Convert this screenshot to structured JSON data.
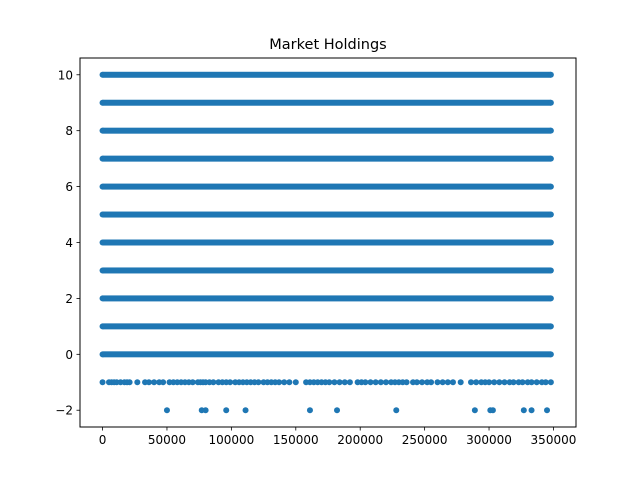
{
  "chart_data": {
    "type": "scatter",
    "title": "Market Holdings",
    "xlabel": "",
    "ylabel": "",
    "xlim": [
      -17500,
      367500
    ],
    "ylim": [
      -2.6,
      10.6
    ],
    "x_ticks": [
      0,
      50000,
      100000,
      150000,
      200000,
      250000,
      300000,
      350000
    ],
    "x_tick_labels": [
      "0",
      "50000",
      "100000",
      "150000",
      "200000",
      "250000",
      "300000",
      "350000"
    ],
    "y_ticks": [
      -2,
      0,
      2,
      4,
      6,
      8,
      10
    ],
    "y_tick_labels": [
      "−2",
      "0",
      "2",
      "4",
      "6",
      "8",
      "10"
    ],
    "grid": false,
    "marker_color": "#1f77b4",
    "dense_bands": [
      {
        "y": 10,
        "x_start": 0,
        "x_end": 348000
      },
      {
        "y": 9,
        "x_start": 0,
        "x_end": 348000
      },
      {
        "y": 8,
        "x_start": 0,
        "x_end": 348000
      },
      {
        "y": 7,
        "x_start": 0,
        "x_end": 348000
      },
      {
        "y": 6,
        "x_start": 0,
        "x_end": 348000
      },
      {
        "y": 5,
        "x_start": 0,
        "x_end": 348000
      },
      {
        "y": 4,
        "x_start": 0,
        "x_end": 348000
      },
      {
        "y": 3,
        "x_start": 0,
        "x_end": 348000
      },
      {
        "y": 2,
        "x_start": 0,
        "x_end": 348000
      },
      {
        "y": 1,
        "x_start": 0,
        "x_end": 348000
      },
      {
        "y": 0,
        "x_start": 0,
        "x_end": 348000
      }
    ],
    "sparse_points": [
      {
        "y": -1,
        "x": [
          0,
          5000,
          7000,
          9000,
          11000,
          14000,
          17000,
          19000,
          21000,
          27000,
          33000,
          36000,
          40000,
          44000,
          47000,
          52000,
          55000,
          58000,
          61000,
          64000,
          67000,
          70000,
          74000,
          76000,
          78000,
          80000,
          83000,
          86000,
          90000,
          93000,
          96000,
          99000,
          103000,
          106000,
          109000,
          112000,
          115000,
          118000,
          121000,
          125000,
          128000,
          131000,
          134000,
          137000,
          141000,
          145000,
          150000,
          158000,
          161000,
          164000,
          167000,
          170000,
          173000,
          176000,
          180000,
          184000,
          188000,
          192000,
          198000,
          201000,
          204000,
          208000,
          212000,
          216000,
          220000,
          224000,
          227000,
          230000,
          233000,
          236000,
          241000,
          244000,
          248000,
          252000,
          255000,
          260000,
          264000,
          268000,
          272000,
          278000,
          286000,
          290000,
          294000,
          297000,
          300000,
          304000,
          308000,
          312000,
          316000,
          319000,
          323000,
          326000,
          330000,
          333000,
          337000,
          341000,
          344000,
          348000
        ]
      },
      {
        "y": -2,
        "x": [
          50000,
          77000,
          80000,
          96000,
          111000,
          161000,
          182000,
          228000,
          289000,
          301000,
          303000,
          327000,
          333000,
          345000
        ]
      }
    ]
  }
}
